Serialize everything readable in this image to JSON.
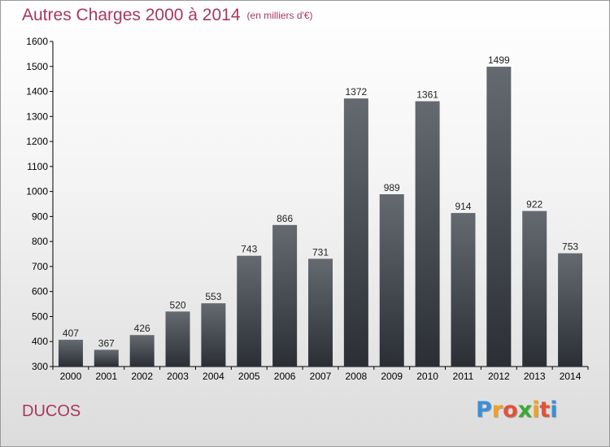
{
  "chart_data": {
    "type": "bar",
    "title": "Autres Charges 2000 à 2014",
    "subtitle": "(en milliers d'€)",
    "categories": [
      "2000",
      "2001",
      "2002",
      "2003",
      "2004",
      "2005",
      "2006",
      "2007",
      "2008",
      "2009",
      "2010",
      "2011",
      "2012",
      "2013",
      "2014"
    ],
    "values": [
      407,
      367,
      426,
      520,
      553,
      743,
      866,
      731,
      1372,
      989,
      1361,
      914,
      1499,
      922,
      753
    ],
    "ylim": [
      300,
      1600
    ],
    "yticks": [
      300,
      400,
      500,
      600,
      700,
      800,
      900,
      1000,
      1100,
      1200,
      1300,
      1400,
      1500,
      1600
    ],
    "xlabel": "",
    "ylabel": "",
    "grid": false,
    "bar_color_top": "#656a71",
    "bar_color_bottom": "#2b2f35"
  },
  "place_name": "DUCOS",
  "logo": {
    "letters": [
      "P",
      "r",
      "o",
      "x",
      "i",
      "t",
      "i"
    ],
    "colors": [
      "#3b8fd6",
      "#f2a024",
      "#e2523a",
      "#3aaa35",
      "#f2a024",
      "#e2523a",
      "#3b8fd6"
    ]
  },
  "colors": {
    "title": "#a8385a",
    "axis": "#000000"
  }
}
